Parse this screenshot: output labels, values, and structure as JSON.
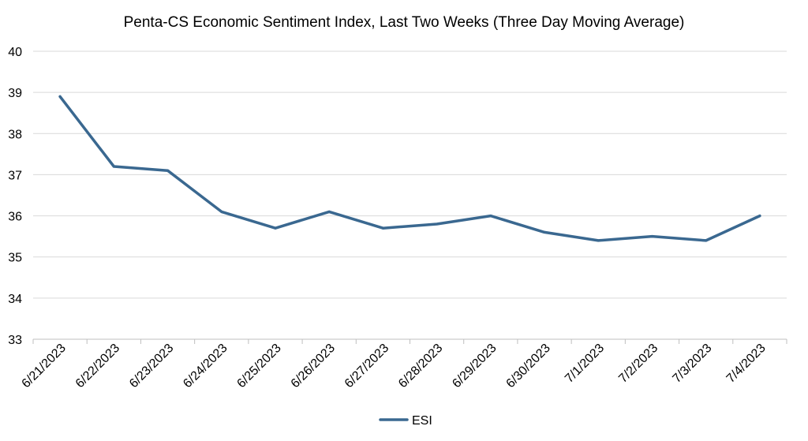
{
  "chart_data": {
    "type": "line",
    "title": "Penta-CS Economic Sentiment Index, Last Two Weeks (Three Day Moving Average)",
    "xlabel": "",
    "ylabel": "",
    "categories": [
      "6/21/2023",
      "6/22/2023",
      "6/23/2023",
      "6/24/2023",
      "6/25/2023",
      "6/26/2023",
      "6/27/2023",
      "6/28/2023",
      "6/29/2023",
      "6/30/2023",
      "7/1/2023",
      "7/2/2023",
      "7/3/2023",
      "7/4/2023"
    ],
    "series": [
      {
        "name": "ESI",
        "color": "#3A6890",
        "values": [
          38.9,
          37.2,
          37.1,
          36.1,
          35.7,
          36.1,
          35.7,
          35.8,
          36.0,
          35.6,
          35.4,
          35.5,
          35.4,
          36.0
        ]
      }
    ],
    "ylim": [
      33,
      40
    ],
    "yticks": [
      "33",
      "34",
      "35",
      "36",
      "37",
      "38",
      "39",
      "40"
    ],
    "grid": true,
    "legend_position": "bottom"
  }
}
